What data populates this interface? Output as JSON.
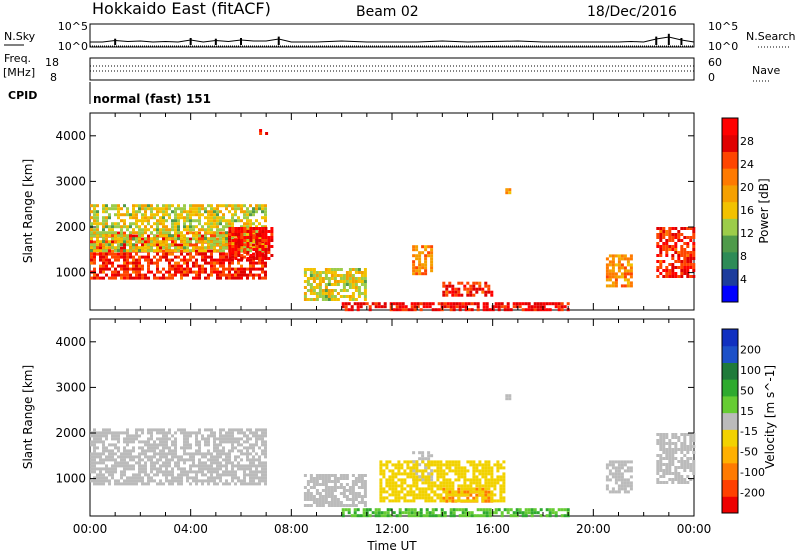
{
  "header": {
    "station": "Hokkaido East (fitACF)",
    "beam": "Beam 02",
    "date": "18/Dec/2016"
  },
  "left_labels": {
    "nsky": "N.Sky",
    "freq_line1": "Freq.",
    "freq_line2": "[MHz]",
    "cpid": "CPID"
  },
  "right_labels": {
    "nsearch": "N.Search",
    "nave": "Nave"
  },
  "cpid_text": "normal (fast) 151",
  "colors": {
    "power": [
      "#0000ff",
      "#1c3c9c",
      "#2e8b57",
      "#4f9a4a",
      "#9ccc4a",
      "#f2c200",
      "#f5a000",
      "#ff7a00",
      "#ff4500",
      "#e00000",
      "#ff0000"
    ],
    "velocity": [
      "#1030c0",
      "#1c50c8",
      "#1f7a3a",
      "#2eaa2e",
      "#66cc33",
      "#bbbbbb",
      "#f2d200",
      "#ffb000",
      "#ff7a00",
      "#ff4000",
      "#ee0000"
    ]
  },
  "chart_data": [
    {
      "type": "line",
      "title": "N.Sky / N.Search",
      "ylabel_left": "N.Sky",
      "ylabel_right": "N.Search",
      "left_ticks": [
        "10^5",
        "10^0"
      ],
      "right_ticks": [
        "10^5",
        "10^0"
      ],
      "x_hours": [
        0,
        0.5,
        1,
        1.5,
        2,
        2.5,
        3,
        3.5,
        4,
        4.5,
        5,
        5.5,
        6,
        6.5,
        7,
        7.5,
        8,
        9,
        10,
        11,
        12,
        13,
        14,
        15,
        16,
        17,
        18,
        19,
        20,
        21,
        21.5,
        22,
        22.5,
        23,
        23.5,
        24
      ],
      "values": [
        0.3,
        0.3,
        0.45,
        0.35,
        0.4,
        0.3,
        0.35,
        0.3,
        0.5,
        0.3,
        0.45,
        0.35,
        0.5,
        0.4,
        0.4,
        0.6,
        0.3,
        0.3,
        0.4,
        0.3,
        0.3,
        0.3,
        0.4,
        0.3,
        0.35,
        0.4,
        0.3,
        0.3,
        0.3,
        0.3,
        0.35,
        0.3,
        0.6,
        0.8,
        0.5,
        0.3
      ]
    },
    {
      "type": "line",
      "title": "Freq. / Nave",
      "ylabel_left": "Freq. [MHz]",
      "ylabel_right": "Nave",
      "left_ticks": [
        "18",
        "8"
      ],
      "right_ticks": [
        "60",
        "0"
      ],
      "freq_mhz": 10.9,
      "nave": 32
    },
    {
      "type": "heatmap",
      "parameter": "Power",
      "unit": "dB",
      "ylabel": "Slant Range [km]",
      "xlabel": "Time UT",
      "xlim_hours": [
        0,
        24
      ],
      "ylim_km": [
        180,
        4500
      ],
      "x_ticks": [
        "00:00",
        "04:00",
        "08:00",
        "12:00",
        "16:00",
        "20:00",
        "00:00"
      ],
      "y_ticks": [
        1000,
        2000,
        3000,
        4000
      ],
      "colorbar_ticks": [
        4,
        8,
        12,
        16,
        20,
        24,
        28
      ],
      "colorbar_label": "Power [dB]",
      "echo_regions": [
        {
          "t0": 0.0,
          "t1": 7.0,
          "r0": 900,
          "r1": 1900,
          "level": 26
        },
        {
          "t0": 0.0,
          "t1": 7.0,
          "r0": 1500,
          "r1": 2500,
          "level": 14
        },
        {
          "t0": 5.5,
          "t1": 7.2,
          "r0": 1300,
          "r1": 2000,
          "level": 28
        },
        {
          "t0": 6.6,
          "t1": 7.0,
          "r0": 4050,
          "r1": 4150,
          "level": 28
        },
        {
          "t0": 8.5,
          "t1": 11.0,
          "r0": 400,
          "r1": 1100,
          "level": 14
        },
        {
          "t0": 10.0,
          "t1": 19.0,
          "r0": 200,
          "r1": 350,
          "level": 28
        },
        {
          "t0": 12.8,
          "t1": 13.6,
          "r0": 1000,
          "r1": 1600,
          "level": 20
        },
        {
          "t0": 14.0,
          "t1": 16.0,
          "r0": 500,
          "r1": 800,
          "level": 26
        },
        {
          "t0": 16.5,
          "t1": 16.7,
          "r0": 2750,
          "r1": 2850,
          "level": 18
        },
        {
          "t0": 20.5,
          "t1": 21.5,
          "r0": 700,
          "r1": 1400,
          "level": 20
        },
        {
          "t0": 22.5,
          "t1": 24.0,
          "r0": 900,
          "r1": 2000,
          "level": 26
        }
      ]
    },
    {
      "type": "heatmap",
      "parameter": "Velocity",
      "unit": "m s^-1",
      "ylabel": "Slant Range [km]",
      "xlabel": "Time UT",
      "xlim_hours": [
        0,
        24
      ],
      "ylim_km": [
        180,
        4500
      ],
      "x_ticks": [
        "00:00",
        "04:00",
        "08:00",
        "12:00",
        "16:00",
        "20:00",
        "00:00"
      ],
      "y_ticks": [
        1000,
        2000,
        3000,
        4000
      ],
      "colorbar_ticks": [
        200,
        100,
        50,
        15,
        -15,
        -50,
        -100,
        -200
      ],
      "colorbar_label": "Velocity [m s^-1]",
      "echo_regions": [
        {
          "t0": 0.0,
          "t1": 7.0,
          "r0": 900,
          "r1": 2100,
          "level": 0
        },
        {
          "t0": 8.5,
          "t1": 11.0,
          "r0": 400,
          "r1": 1100,
          "level": 0
        },
        {
          "t0": 10.0,
          "t1": 19.0,
          "r0": 200,
          "r1": 350,
          "level": 30
        },
        {
          "t0": 12.8,
          "t1": 13.6,
          "r0": 1000,
          "r1": 1600,
          "level": 0
        },
        {
          "t0": 14.0,
          "t1": 16.0,
          "r0": 500,
          "r1": 800,
          "level": -100
        },
        {
          "t0": 11.5,
          "t1": 16.5,
          "r0": 500,
          "r1": 1400,
          "level": -50
        },
        {
          "t0": 16.5,
          "t1": 16.7,
          "r0": 2750,
          "r1": 2850,
          "level": 0
        },
        {
          "t0": 20.5,
          "t1": 21.5,
          "r0": 700,
          "r1": 1400,
          "level": 0
        },
        {
          "t0": 22.5,
          "t1": 24.0,
          "r0": 900,
          "r1": 2000,
          "level": 0
        }
      ]
    }
  ],
  "axis_title_x": "Time UT"
}
